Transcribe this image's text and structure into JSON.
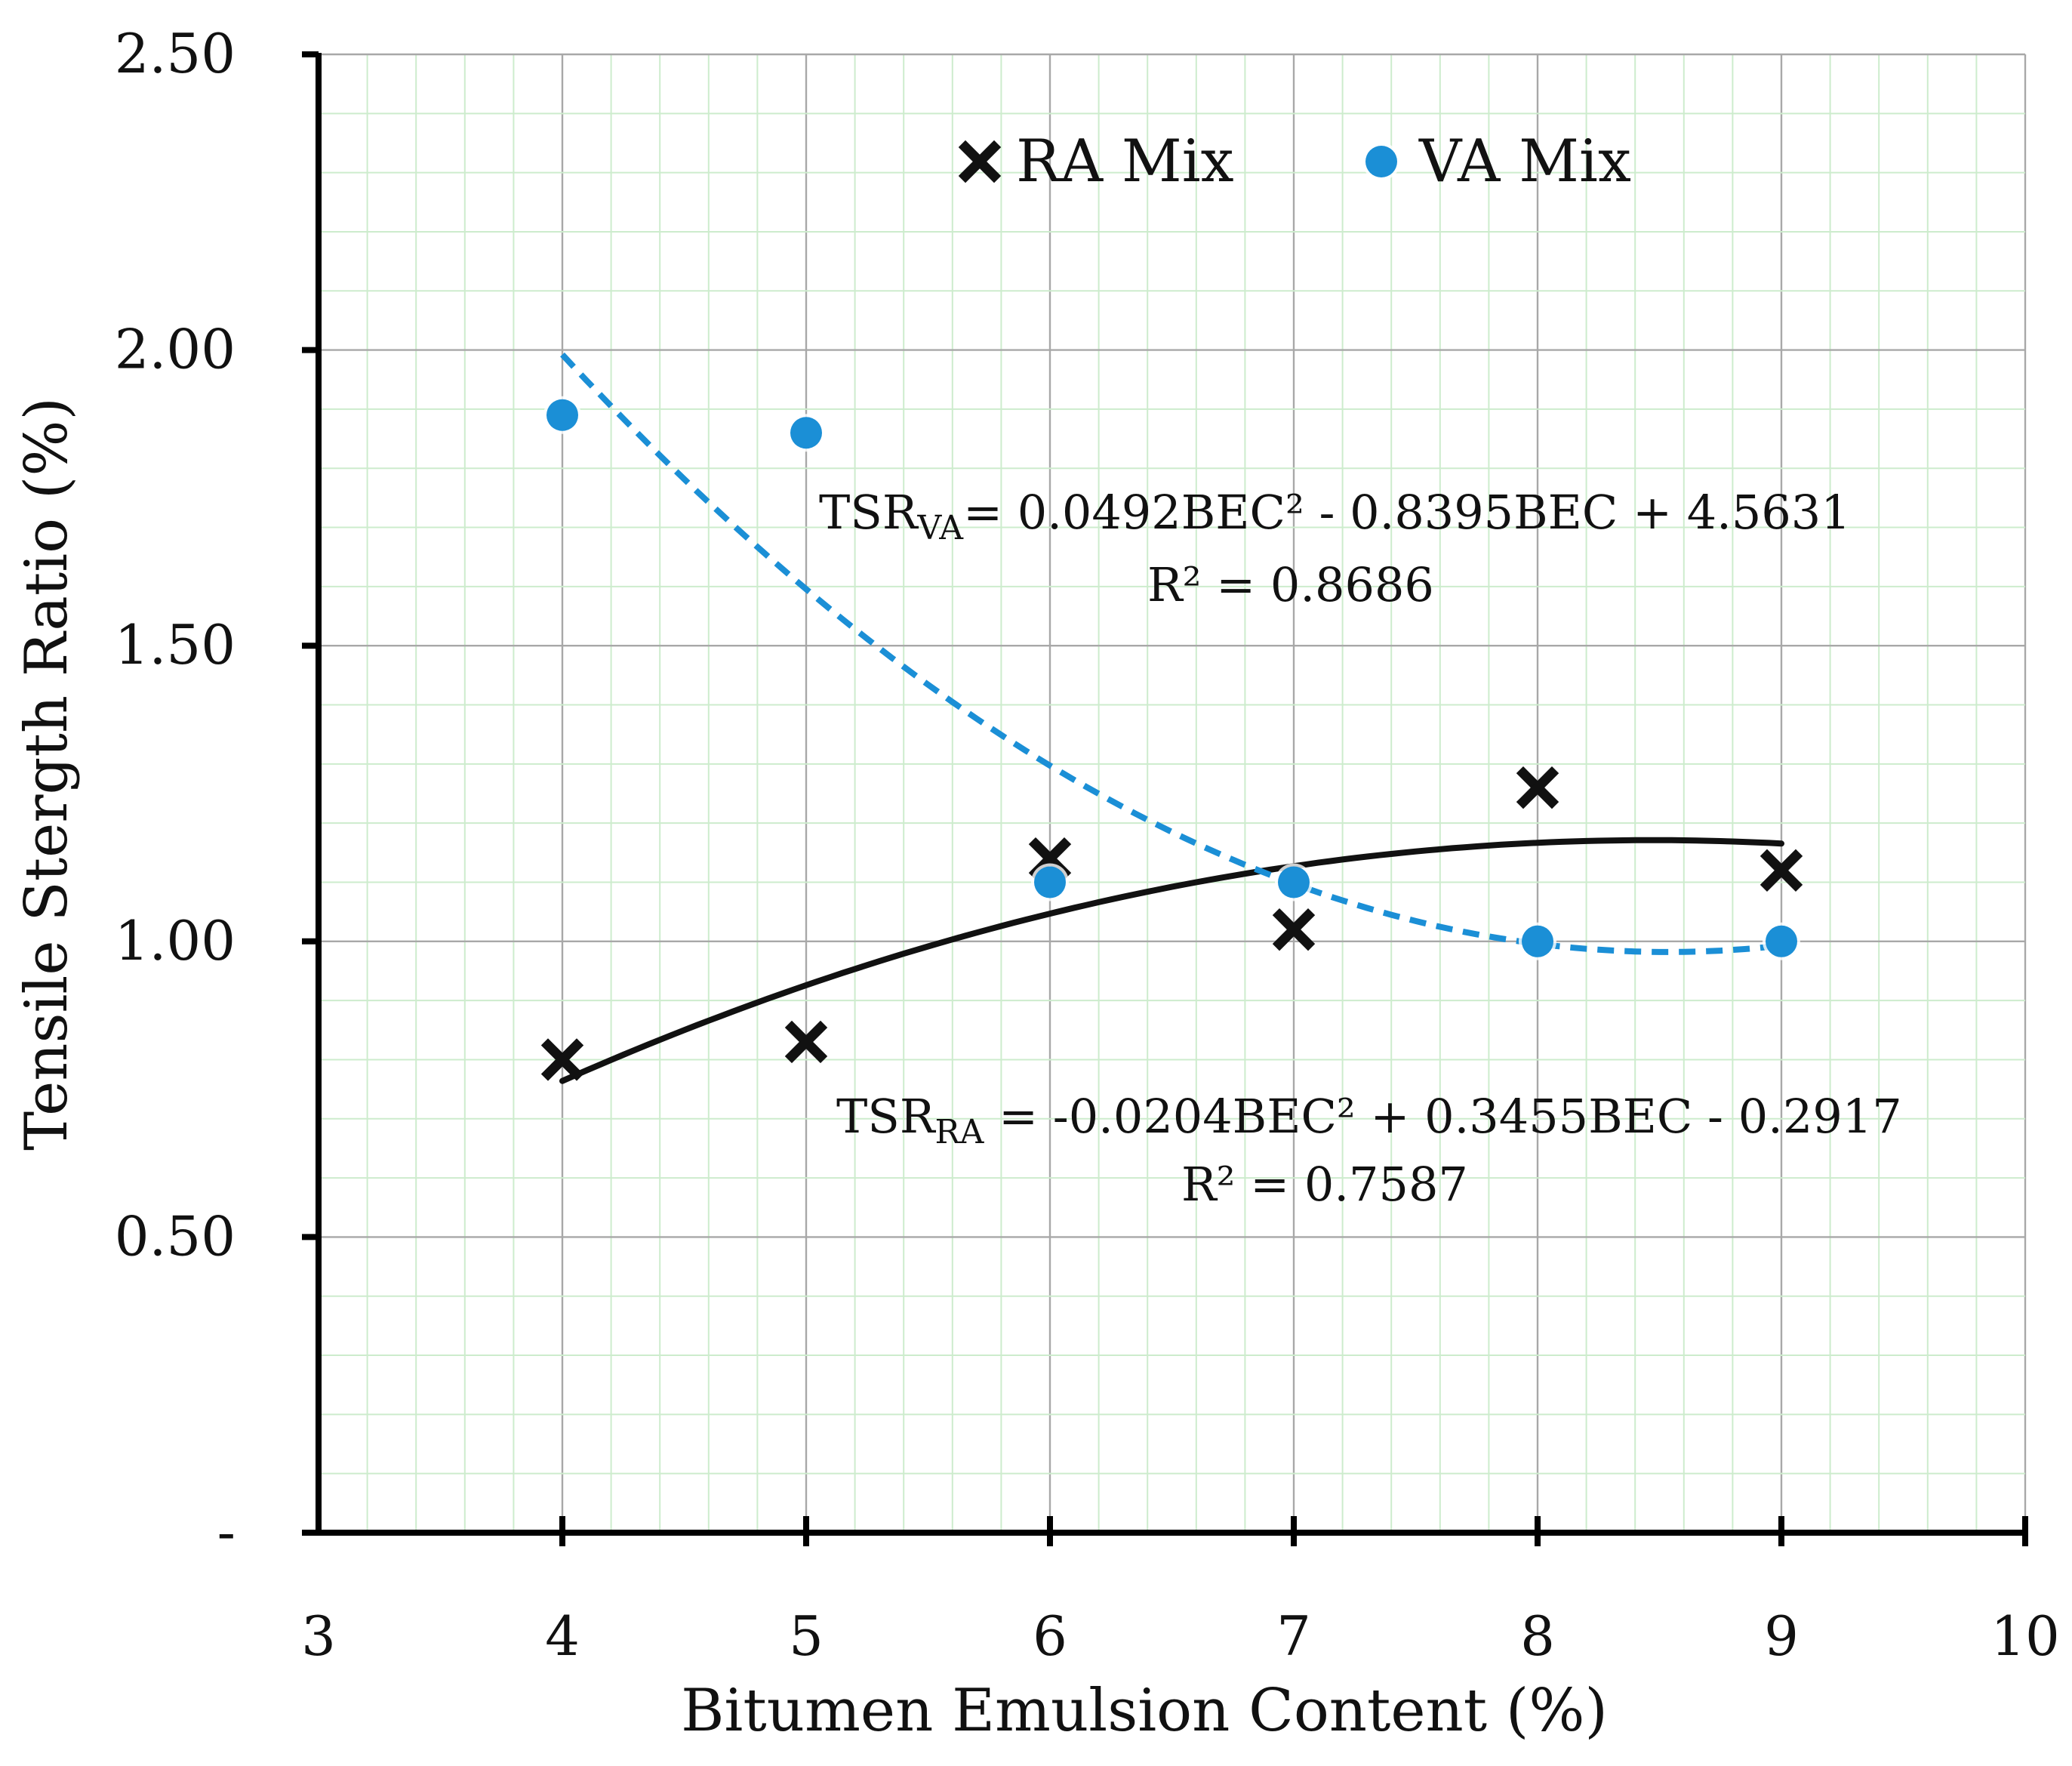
{
  "chart_data": {
    "type": "scatter",
    "title": "",
    "xlabel": "Bitumen Emulsion Content (%)",
    "ylabel": "Tensile Stergth Ratio (%)",
    "xlim": [
      3,
      10
    ],
    "ylim": [
      0,
      2.5
    ],
    "x_ticks": [
      "3",
      "4",
      "5",
      "6",
      "7",
      "8",
      "9",
      "10"
    ],
    "y_ticks": [
      "-",
      "0.50",
      "1.00",
      "1.50",
      "2.00",
      "2.50"
    ],
    "grid": true,
    "legend_position": "top-center",
    "series": [
      {
        "name": "RA Mix",
        "marker": "x",
        "color": "#111111",
        "x": [
          4,
          5,
          6,
          7,
          8,
          9
        ],
        "y": [
          0.8,
          0.83,
          1.14,
          1.02,
          1.26,
          1.12
        ],
        "trendline": {
          "type": "polynomial",
          "coefficients": [
            -0.0204,
            0.3455,
            -0.2917
          ],
          "style": "solid",
          "equation_main": "TSR",
          "equation_sub": "RA",
          "equation_rest": " = -0.0204BEC² + 0.3455BEC - 0.2917",
          "r2_label": "R² = 0.7587"
        }
      },
      {
        "name": "VA Mix",
        "marker": "circle",
        "color": "#1b8fd6",
        "x": [
          4,
          5,
          6,
          7,
          8,
          9
        ],
        "y": [
          1.89,
          1.86,
          1.1,
          1.1,
          1.0,
          1.0
        ],
        "trendline": {
          "type": "polynomial",
          "coefficients": [
            0.0492,
            -0.8395,
            4.5631
          ],
          "style": "dashed",
          "equation_main": "TSR",
          "equation_sub": "VA",
          "equation_rest": "= 0.0492BEC² - 0.8395BEC + 4.5631",
          "r2_label": "R² = 0.8686"
        }
      }
    ]
  }
}
